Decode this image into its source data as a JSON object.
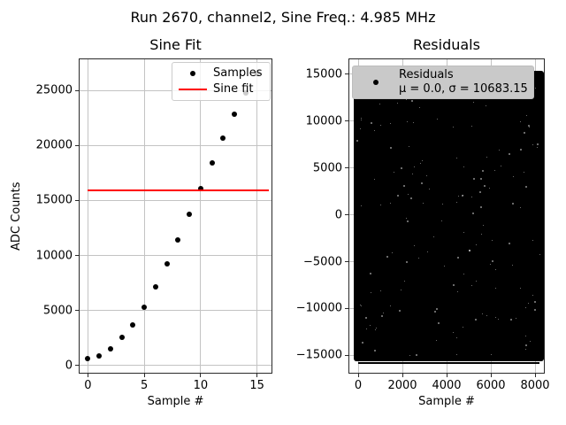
{
  "figure": {
    "suptitle": "Run 2670, channel2, Sine Freq.: 4.985 MHz"
  },
  "colors": {
    "samples": "#000000",
    "fit_line": "#ff0000",
    "grid": "#c3c3c3",
    "residuals_fill": "#000000",
    "residuals_legend_bg": "#c9c9c9",
    "sine_legend_bg": "rgba(255,255,255,0.8)",
    "legend_border": "#cccccc"
  },
  "chart_data": [
    {
      "type": "scatter",
      "title": "Sine Fit",
      "xlabel": "Sample #",
      "ylabel": "ADC Counts",
      "xlim": [
        -0.81,
        16.36
      ],
      "ylim": [
        -750,
        27930
      ],
      "xticks": [
        0,
        5,
        10,
        15
      ],
      "yticks": [
        0,
        5000,
        10000,
        15000,
        20000,
        25000
      ],
      "grid": true,
      "legend": {
        "position": "upper right",
        "entries": [
          {
            "label": "Samples",
            "marker": "dot",
            "color": "#000000"
          },
          {
            "label": "Sine fit",
            "marker": "line",
            "color": "#ff0000"
          }
        ]
      },
      "series": [
        {
          "name": "Samples",
          "kind": "scatter",
          "color": "#000000",
          "x": [
            0,
            1,
            2,
            3,
            4,
            5,
            6,
            7,
            8,
            9,
            10,
            11,
            12,
            13,
            14,
            15
          ],
          "y": [
            650,
            900,
            1510,
            2550,
            3710,
            5320,
            7150,
            9220,
            11420,
            13780,
            16060,
            18400,
            20680,
            22860,
            24800,
            26550
          ]
        },
        {
          "name": "Sine fit",
          "kind": "line",
          "color": "#ff0000",
          "x": [
            0,
            16.05
          ],
          "y": [
            15900,
            15900
          ]
        }
      ]
    },
    {
      "type": "scatter",
      "title": "Residuals",
      "xlabel": "Sample #",
      "ylabel": "",
      "xlim": [
        -440,
        8440
      ],
      "ylim": [
        -16950,
        16700
      ],
      "xticks": [
        0,
        2000,
        4000,
        6000,
        8000
      ],
      "yticks": [
        -15000,
        -10000,
        -5000,
        0,
        5000,
        10000,
        15000
      ],
      "grid": true,
      "legend": {
        "position": "upper left",
        "entries": [
          {
            "label": "Residuals",
            "sublabel": "μ = 0.0, σ = 10683.15",
            "marker": "dot",
            "color": "#000000"
          }
        ]
      },
      "dense_band": {
        "x0": -200,
        "x1": 8400,
        "y0": -15620,
        "y1": 15340,
        "color": "#000000"
      },
      "edge_line": {
        "x0": 0,
        "x1": 8191,
        "y": -15860
      }
    }
  ]
}
